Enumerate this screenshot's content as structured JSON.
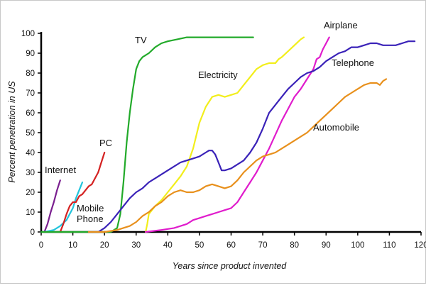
{
  "chart_data": {
    "type": "line",
    "title": "",
    "xlabel": "Years since product invented",
    "ylabel": "Percent penetration in US",
    "xlim": [
      0,
      120
    ],
    "ylim": [
      0,
      100
    ],
    "xticks": [
      0,
      10,
      20,
      30,
      40,
      50,
      60,
      70,
      80,
      90,
      100,
      110,
      120
    ],
    "yticks": [
      0,
      10,
      20,
      30,
      40,
      50,
      60,
      70,
      80,
      90,
      100
    ],
    "grid": false,
    "legend": "inline labels",
    "series": [
      {
        "name": "Internet",
        "label": "Internet",
        "color": "#7a1f8f",
        "points": [
          [
            1,
            0
          ],
          [
            2,
            4
          ],
          [
            3,
            10
          ],
          [
            4,
            15
          ],
          [
            5,
            21
          ],
          [
            6,
            26
          ]
        ]
      },
      {
        "name": "Mobile Phone",
        "label": "Mobile\nPhone",
        "color": "#22c4dc",
        "points": [
          [
            1,
            0
          ],
          [
            4,
            1
          ],
          [
            6,
            3
          ],
          [
            8,
            6
          ],
          [
            10,
            12
          ],
          [
            11,
            17
          ],
          [
            12,
            21
          ],
          [
            13,
            25
          ]
        ]
      },
      {
        "name": "PC",
        "label": "PC",
        "color": "#d42222",
        "points": [
          [
            6,
            0
          ],
          [
            7,
            4
          ],
          [
            8,
            9
          ],
          [
            9,
            13
          ],
          [
            10,
            15
          ],
          [
            11,
            15
          ],
          [
            12,
            18
          ],
          [
            13,
            19
          ],
          [
            14,
            21
          ],
          [
            15,
            23
          ],
          [
            16,
            24
          ],
          [
            17,
            27
          ],
          [
            18,
            30
          ],
          [
            19,
            35
          ],
          [
            20,
            40
          ]
        ]
      },
      {
        "name": "TV",
        "label": "TV",
        "color": "#22aa2a",
        "points": [
          [
            0,
            0
          ],
          [
            20,
            0
          ],
          [
            22,
            0
          ],
          [
            24,
            2
          ],
          [
            25,
            9
          ],
          [
            26,
            25
          ],
          [
            27,
            45
          ],
          [
            28,
            60
          ],
          [
            29,
            72
          ],
          [
            30,
            82
          ],
          [
            31,
            86
          ],
          [
            32,
            88
          ],
          [
            33,
            89
          ],
          [
            34,
            90
          ],
          [
            36,
            93
          ],
          [
            38,
            95
          ],
          [
            40,
            96
          ],
          [
            43,
            97
          ],
          [
            46,
            98
          ],
          [
            50,
            98
          ],
          [
            55,
            98
          ],
          [
            60,
            98
          ],
          [
            64,
            98
          ],
          [
            67,
            98
          ]
        ]
      },
      {
        "name": "Electricity",
        "label": "Electricity",
        "color": "#f2ee1c",
        "points": [
          [
            33,
            0
          ],
          [
            33.5,
            4
          ],
          [
            34,
            9
          ],
          [
            36,
            13
          ],
          [
            38,
            16
          ],
          [
            40,
            20
          ],
          [
            42,
            24
          ],
          [
            44,
            28
          ],
          [
            46,
            33
          ],
          [
            48,
            42
          ],
          [
            50,
            55
          ],
          [
            52,
            63
          ],
          [
            54,
            68
          ],
          [
            56,
            69
          ],
          [
            58,
            68
          ],
          [
            60,
            69
          ],
          [
            62,
            70
          ],
          [
            64,
            74
          ],
          [
            66,
            78
          ],
          [
            68,
            82
          ],
          [
            70,
            84
          ],
          [
            72,
            85
          ],
          [
            74,
            85
          ],
          [
            75,
            87
          ],
          [
            76,
            88
          ],
          [
            78,
            91
          ],
          [
            80,
            94
          ],
          [
            82,
            97
          ],
          [
            83,
            98
          ]
        ]
      },
      {
        "name": "Airplane",
        "label": "Airplane",
        "color": "#e01ccc",
        "points": [
          [
            33,
            0
          ],
          [
            38,
            1
          ],
          [
            42,
            2
          ],
          [
            46,
            4
          ],
          [
            48,
            6
          ],
          [
            50,
            7
          ],
          [
            52,
            8
          ],
          [
            54,
            9
          ],
          [
            56,
            10
          ],
          [
            58,
            11
          ],
          [
            60,
            12
          ],
          [
            62,
            15
          ],
          [
            64,
            20
          ],
          [
            66,
            25
          ],
          [
            68,
            30
          ],
          [
            70,
            36
          ],
          [
            72,
            42
          ],
          [
            74,
            49
          ],
          [
            76,
            56
          ],
          [
            78,
            62
          ],
          [
            80,
            68
          ],
          [
            82,
            72
          ],
          [
            84,
            77
          ],
          [
            86,
            82
          ],
          [
            87,
            87
          ],
          [
            88,
            88
          ],
          [
            89,
            92
          ],
          [
            90,
            95
          ],
          [
            91,
            98
          ]
        ]
      },
      {
        "name": "Telephone",
        "label": "Telephone",
        "color": "#3a22b8",
        "points": [
          [
            15,
            0
          ],
          [
            18,
            0
          ],
          [
            20,
            2
          ],
          [
            22,
            5
          ],
          [
            24,
            9
          ],
          [
            26,
            13
          ],
          [
            28,
            17
          ],
          [
            30,
            20
          ],
          [
            32,
            22
          ],
          [
            34,
            25
          ],
          [
            36,
            27
          ],
          [
            38,
            29
          ],
          [
            40,
            31
          ],
          [
            42,
            33
          ],
          [
            44,
            35
          ],
          [
            46,
            36
          ],
          [
            48,
            37
          ],
          [
            50,
            38
          ],
          [
            52,
            40
          ],
          [
            53,
            41
          ],
          [
            54,
            41
          ],
          [
            55,
            39
          ],
          [
            56,
            35
          ],
          [
            57,
            31
          ],
          [
            58,
            31
          ],
          [
            60,
            32
          ],
          [
            62,
            34
          ],
          [
            64,
            36
          ],
          [
            66,
            40
          ],
          [
            68,
            45
          ],
          [
            70,
            52
          ],
          [
            72,
            60
          ],
          [
            74,
            64
          ],
          [
            76,
            68
          ],
          [
            78,
            72
          ],
          [
            80,
            75
          ],
          [
            82,
            78
          ],
          [
            84,
            80
          ],
          [
            86,
            81
          ],
          [
            88,
            83
          ],
          [
            90,
            86
          ],
          [
            92,
            88
          ],
          [
            94,
            90
          ],
          [
            96,
            91
          ],
          [
            98,
            93
          ],
          [
            100,
            93
          ],
          [
            102,
            94
          ],
          [
            104,
            95
          ],
          [
            106,
            95
          ],
          [
            108,
            94
          ],
          [
            110,
            94
          ],
          [
            112,
            94
          ],
          [
            114,
            95
          ],
          [
            116,
            96
          ],
          [
            118,
            96
          ]
        ]
      },
      {
        "name": "Automobile",
        "label": "Automobile",
        "color": "#e8901c",
        "points": [
          [
            15,
            0
          ],
          [
            20,
            0
          ],
          [
            24,
            1
          ],
          [
            28,
            3
          ],
          [
            30,
            5
          ],
          [
            32,
            8
          ],
          [
            34,
            10
          ],
          [
            36,
            13
          ],
          [
            38,
            15
          ],
          [
            40,
            18
          ],
          [
            42,
            20
          ],
          [
            44,
            21
          ],
          [
            46,
            20
          ],
          [
            48,
            20
          ],
          [
            50,
            21
          ],
          [
            52,
            23
          ],
          [
            54,
            24
          ],
          [
            56,
            23
          ],
          [
            58,
            22
          ],
          [
            60,
            23
          ],
          [
            62,
            26
          ],
          [
            64,
            30
          ],
          [
            66,
            33
          ],
          [
            68,
            36
          ],
          [
            70,
            38
          ],
          [
            72,
            39
          ],
          [
            74,
            40
          ],
          [
            76,
            42
          ],
          [
            78,
            44
          ],
          [
            80,
            46
          ],
          [
            82,
            48
          ],
          [
            84,
            50
          ],
          [
            86,
            53
          ],
          [
            88,
            56
          ],
          [
            90,
            59
          ],
          [
            92,
            62
          ],
          [
            94,
            65
          ],
          [
            96,
            68
          ],
          [
            98,
            70
          ],
          [
            100,
            72
          ],
          [
            102,
            74
          ],
          [
            104,
            75
          ],
          [
            106,
            75
          ],
          [
            107,
            74
          ],
          [
            108,
            76
          ],
          [
            109,
            77
          ]
        ]
      }
    ]
  }
}
